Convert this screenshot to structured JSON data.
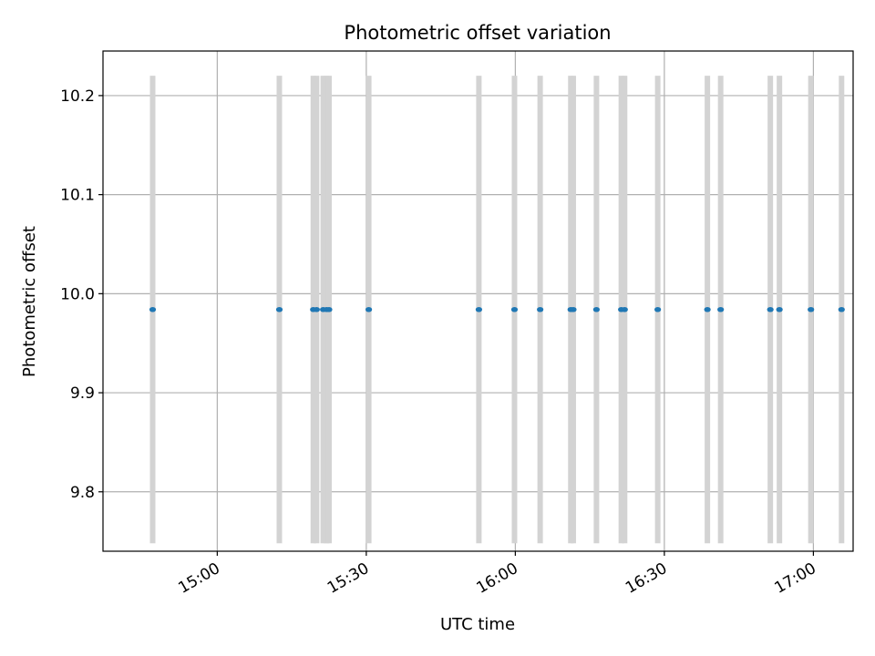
{
  "chart_data": {
    "type": "scatter",
    "title": "Photometric offset variation",
    "xlabel": "UTC time",
    "ylabel": "Photometric offset",
    "xlim": [
      "14:37",
      "17:08"
    ],
    "ylim": [
      9.74,
      10.245
    ],
    "xticks": [
      "15:00",
      "15:30",
      "16:00",
      "16:30",
      "17:00"
    ],
    "yticks": [
      9.8,
      9.9,
      10.0,
      10.1,
      10.2
    ],
    "yticklabels": [
      "9.8",
      "9.9",
      "10.0",
      "10.1",
      "10.2"
    ],
    "grid": true,
    "band_ylim": [
      9.748,
      10.22
    ],
    "point_color": "#1f77b4",
    "band_color": "#d3d3d3",
    "points": [
      {
        "x": "14:47:00",
        "y": 9.984
      },
      {
        "x": "15:12:30",
        "y": 9.984
      },
      {
        "x": "15:19:20",
        "y": 9.984
      },
      {
        "x": "15:20:00",
        "y": 9.984
      },
      {
        "x": "15:21:20",
        "y": 9.984
      },
      {
        "x": "15:22:00",
        "y": 9.984
      },
      {
        "x": "15:22:30",
        "y": 9.984
      },
      {
        "x": "15:30:30",
        "y": 9.984
      },
      {
        "x": "15:52:40",
        "y": 9.984
      },
      {
        "x": "15:59:50",
        "y": 9.984
      },
      {
        "x": "16:05:00",
        "y": 9.984
      },
      {
        "x": "16:11:10",
        "y": 9.984
      },
      {
        "x": "16:11:40",
        "y": 9.984
      },
      {
        "x": "16:16:20",
        "y": 9.984
      },
      {
        "x": "16:21:20",
        "y": 9.984
      },
      {
        "x": "16:22:00",
        "y": 9.984
      },
      {
        "x": "16:28:40",
        "y": 9.984
      },
      {
        "x": "16:38:40",
        "y": 9.984
      },
      {
        "x": "16:41:20",
        "y": 9.984
      },
      {
        "x": "16:51:20",
        "y": 9.984
      },
      {
        "x": "16:53:10",
        "y": 9.984
      },
      {
        "x": "16:59:30",
        "y": 9.984
      },
      {
        "x": "17:05:40",
        "y": 9.984
      }
    ]
  }
}
